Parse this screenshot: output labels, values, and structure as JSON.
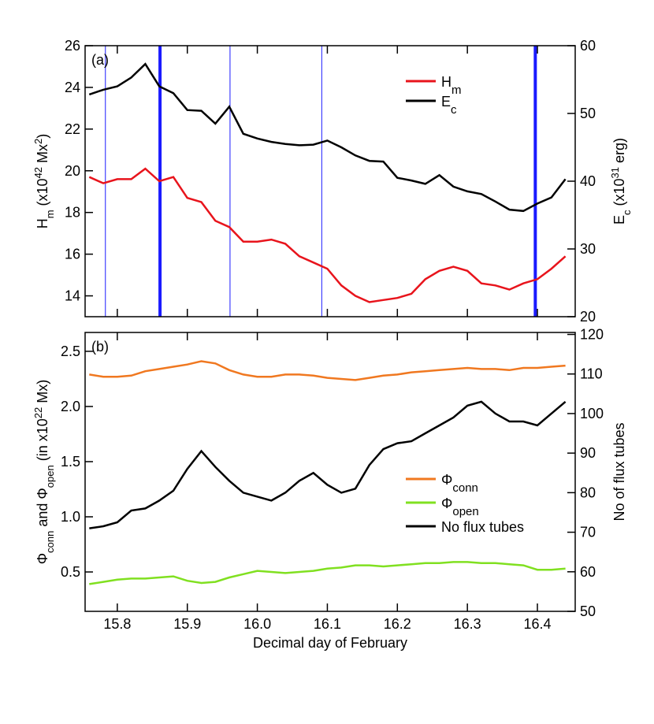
{
  "chart_data": [
    {
      "type": "line",
      "panel_label": "(a)",
      "x": [
        15.76,
        15.78,
        15.8,
        15.82,
        15.84,
        15.86,
        15.88,
        15.9,
        15.92,
        15.94,
        15.96,
        15.98,
        16.0,
        16.02,
        16.04,
        16.06,
        16.08,
        16.1,
        16.12,
        16.14,
        16.16,
        16.18,
        16.2,
        16.22,
        16.24,
        16.26,
        16.28,
        16.3,
        16.32,
        16.34,
        16.36,
        16.38,
        16.4,
        16.42,
        16.44
      ],
      "xlim": [
        15.754,
        16.454
      ],
      "xticks": [
        15.8,
        15.9,
        {
          "value": 16,
          "label": "16.0"
        },
        16.1,
        16.2,
        16.3,
        16.4
      ],
      "xtick_labels": false,
      "ylim": [
        13,
        26
      ],
      "yticks": [
        14,
        16,
        18,
        20,
        22,
        24,
        26
      ],
      "y2lim": [
        20,
        60
      ],
      "y2ticks": [
        20,
        30,
        40,
        50,
        60
      ],
      "ylabel": [
        {
          "text": "H"
        },
        {
          "text": "m",
          "sub": true
        },
        {
          "text": " (x10"
        },
        {
          "text": "42",
          "sup": true
        },
        {
          "text": " Mx"
        },
        {
          "text": "2",
          "sup": true
        },
        {
          "text": ")"
        }
      ],
      "y2label": [
        {
          "text": "E"
        },
        {
          "text": "c",
          "sub": true
        },
        {
          "text": " (x10"
        },
        {
          "text": "31",
          "sup": true
        },
        {
          "text": " erg)"
        }
      ],
      "vlines": [
        {
          "x": 15.783,
          "thick": false,
          "color": "#1a1aff"
        },
        {
          "x": 15.861,
          "thick": true,
          "color": "#1a1aff"
        },
        {
          "x": 15.961,
          "thick": false,
          "color": "#1a1aff"
        },
        {
          "x": 16.092,
          "thick": false,
          "color": "#1a1aff"
        },
        {
          "x": 16.397,
          "thick": true,
          "color": "#1a1aff"
        }
      ],
      "series": [
        {
          "name": "H",
          "name_sub": "m",
          "color": "#e8141c",
          "values": [
            19.7,
            19.4,
            19.6,
            19.6,
            20.1,
            19.5,
            19.7,
            18.7,
            18.5,
            17.6,
            17.3,
            16.6,
            16.6,
            16.7,
            16.5,
            15.9,
            15.6,
            15.3,
            14.5,
            14.0,
            13.7,
            13.8,
            13.9,
            14.1,
            14.8,
            15.2,
            15.4,
            15.2,
            14.6,
            14.5,
            14.3,
            14.6,
            14.8,
            15.3,
            15.9
          ]
        },
        {
          "name": "E",
          "name_sub": "c",
          "color": "#000000",
          "axis": "y2",
          "values": [
            52.8,
            53.5,
            54,
            55.3,
            57.3,
            54,
            53,
            50.5,
            50.4,
            48.5,
            51,
            47,
            46.3,
            45.8,
            45.5,
            45.3,
            45.4,
            46,
            45,
            43.8,
            43,
            42.9,
            40.5,
            40.1,
            39.6,
            40.9,
            39.2,
            38.5,
            38.1,
            37,
            35.8,
            35.6,
            36.7,
            37.6,
            40.3
          ]
        }
      ]
    },
    {
      "type": "line",
      "panel_label": "(b)",
      "x": [
        15.76,
        15.78,
        15.8,
        15.82,
        15.84,
        15.86,
        15.88,
        15.9,
        15.92,
        15.94,
        15.96,
        15.98,
        16.0,
        16.02,
        16.04,
        16.06,
        16.08,
        16.1,
        16.12,
        16.14,
        16.16,
        16.18,
        16.2,
        16.22,
        16.24,
        16.26,
        16.28,
        16.3,
        16.32,
        16.34,
        16.36,
        16.38,
        16.4,
        16.42,
        16.44
      ],
      "xlim": [
        15.754,
        16.454
      ],
      "xticks": [
        15.8,
        15.9,
        {
          "value": 16,
          "label": "16.0"
        },
        16.1,
        16.2,
        16.3,
        16.4
      ],
      "xtick_labels": true,
      "xlabel": "Decimal day of February",
      "ylim": [
        0.143,
        2.671
      ],
      "yticks": [
        0.5,
        {
          "value": 1,
          "label": "1.0"
        },
        1.5,
        {
          "value": 2,
          "label": "2.0"
        },
        2.5
      ],
      "y2lim": [
        50,
        120.5
      ],
      "y2ticks": [
        50,
        60,
        70,
        80,
        90,
        100,
        110,
        120
      ],
      "ylabel": [
        {
          "text": "Φ"
        },
        {
          "text": "conn",
          "sub": true
        },
        {
          "text": " and  Φ"
        },
        {
          "text": "open",
          "sub": true
        },
        {
          "text": " (in x10"
        },
        {
          "text": "22",
          "sup": true
        },
        {
          "text": " Mx)"
        }
      ],
      "y2label": [
        {
          "text": "No of flux tubes"
        }
      ],
      "series": [
        {
          "name": "Φ",
          "name_sub": "conn",
          "color": "#f07820",
          "values": [
            2.29,
            2.27,
            2.27,
            2.28,
            2.32,
            2.34,
            2.36,
            2.38,
            2.41,
            2.39,
            2.33,
            2.29,
            2.27,
            2.27,
            2.29,
            2.29,
            2.28,
            2.26,
            2.25,
            2.24,
            2.26,
            2.28,
            2.29,
            2.31,
            2.32,
            2.33,
            2.34,
            2.35,
            2.34,
            2.34,
            2.33,
            2.35,
            2.35,
            2.36,
            2.37
          ]
        },
        {
          "name": "Φ",
          "name_sub": "open",
          "color": "#80e020",
          "values": [
            0.39,
            0.41,
            0.43,
            0.44,
            0.44,
            0.45,
            0.46,
            0.42,
            0.4,
            0.41,
            0.45,
            0.48,
            0.51,
            0.5,
            0.49,
            0.5,
            0.51,
            0.53,
            0.54,
            0.56,
            0.56,
            0.55,
            0.56,
            0.57,
            0.58,
            0.58,
            0.59,
            0.59,
            0.58,
            0.58,
            0.57,
            0.56,
            0.52,
            0.52,
            0.53
          ]
        },
        {
          "name": "No flux tubes",
          "color": "#000000",
          "axis": "y2",
          "values": [
            71,
            71.5,
            72.5,
            75.5,
            76,
            78,
            80.5,
            86,
            90.5,
            86.5,
            83,
            80,
            79,
            78,
            80,
            83,
            85,
            82,
            80,
            81,
            87,
            91,
            92.5,
            93,
            95,
            97,
            99,
            102,
            103,
            100,
            98,
            98,
            97,
            100,
            103
          ]
        }
      ]
    }
  ]
}
